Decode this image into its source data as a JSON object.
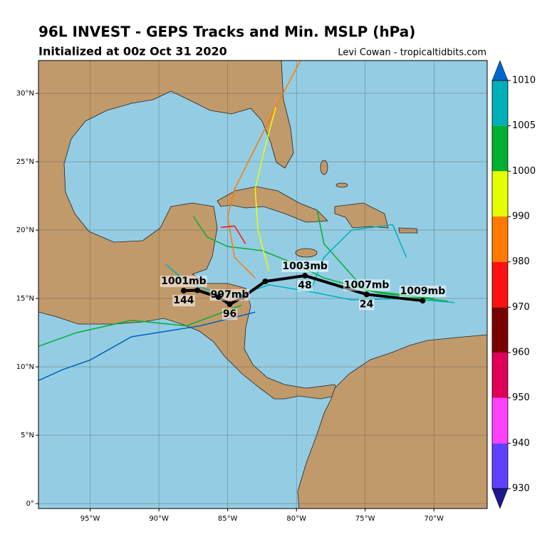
{
  "header": {
    "title": "96L INVEST - GEPS Tracks and Min. MSLP (hPa)",
    "subtitle": "Initialized at 00z Oct 31 2020",
    "credit": "Levi Cowan - tropicaltidbits.com"
  },
  "chart_data": {
    "type": "map-tracks",
    "xlim": [
      -98.76,
      -66.13
    ],
    "ylim": [
      -0.36,
      32.4
    ],
    "xticks": [
      {
        "value": -95,
        "label": "95°W"
      },
      {
        "value": -90,
        "label": "90°W"
      },
      {
        "value": -85,
        "label": "85°W"
      },
      {
        "value": -80,
        "label": "80°W"
      },
      {
        "value": -75,
        "label": "75°W"
      },
      {
        "value": -70,
        "label": "70°W"
      }
    ],
    "yticks": [
      {
        "value": 0,
        "label": "0°"
      },
      {
        "value": 5,
        "label": "5°N"
      },
      {
        "value": 10,
        "label": "10°N"
      },
      {
        "value": 15,
        "label": "15°N"
      },
      {
        "value": 20,
        "label": "20°N"
      },
      {
        "value": 25,
        "label": "25°N"
      },
      {
        "value": 30,
        "label": "30°N"
      }
    ],
    "grid": true,
    "members": [
      {
        "color": "#00b0b8",
        "lon": [
          -68.5,
          -72,
          -76,
          -79,
          -82,
          -84,
          -86,
          -88,
          -89.5
        ],
        "lat": [
          14.7,
          15,
          14.9,
          15.5,
          16,
          15.3,
          15.5,
          16.2,
          17.5
        ]
      },
      {
        "color": "#00b030",
        "lon": [
          -69,
          -74,
          -78,
          -80,
          -82.5,
          -85,
          -86.5,
          -87.5
        ],
        "lat": [
          14.8,
          15.4,
          16.5,
          17.5,
          18.5,
          18.8,
          19.5,
          21
        ]
      },
      {
        "color": "#ff7a00",
        "lon": [
          -83,
          -84.5,
          -85,
          -84.5,
          -83,
          -81.5,
          -79.7
        ],
        "lat": [
          16.5,
          18,
          21,
          23,
          26,
          29,
          32.4
        ]
      },
      {
        "color": "#e6ff00",
        "lon": [
          -82,
          -82.8,
          -83,
          -82.3,
          -81.5
        ],
        "lat": [
          17,
          20,
          23,
          26,
          29
        ]
      },
      {
        "color": "#00b030",
        "lon": [
          -70,
          -75,
          -78,
          -78.5
        ],
        "lat": [
          15,
          15.6,
          19,
          21.5
        ]
      },
      {
        "color": "#0060c0",
        "lon": [
          -83,
          -87,
          -92,
          -95,
          -97,
          -98.76
        ],
        "lat": [
          14,
          13,
          12.2,
          10.5,
          9.8,
          9
        ]
      },
      {
        "color": "#00b030",
        "lon": [
          -84,
          -88,
          -92,
          -96,
          -98.76
        ],
        "lat": [
          14.5,
          13,
          13.4,
          12.5,
          11.5
        ]
      },
      {
        "color": "#00b0b8",
        "lon": [
          -79,
          -78,
          -76,
          -73,
          -72
        ],
        "lat": [
          15.5,
          18,
          20,
          20.4,
          18
        ]
      },
      {
        "color": "#ff1010",
        "lon": [
          -83.7,
          -84.5,
          -85.5
        ],
        "lat": [
          19,
          20.3,
          20.2
        ]
      }
    ],
    "mean_track": {
      "color": "#000000",
      "points": [
        {
          "lon": -70.82,
          "lat": 14.84,
          "pressure": "1009mb"
        },
        {
          "lon": -74.9,
          "lat": 15.3,
          "hour": 24,
          "pressure": "1007mb"
        },
        {
          "lon": -79.38,
          "lat": 16.67,
          "hour": 48,
          "pressure": "1003mb"
        },
        {
          "lon": -82.27,
          "lat": 16.25
        },
        {
          "lon": -83.9,
          "lat": 15.1
        },
        {
          "lon": -84.85,
          "lat": 14.58,
          "hour": 96,
          "pressure": "997mb"
        },
        {
          "lon": -85.67,
          "lat": 15.1
        },
        {
          "lon": -87.2,
          "lat": 15.6
        },
        {
          "lon": -88.2,
          "lat": 15.57,
          "hour": 144,
          "pressure": "1001mb"
        }
      ]
    },
    "colorbar": {
      "levels": [
        930,
        940,
        950,
        960,
        970,
        980,
        990,
        1000,
        1005,
        1010
      ],
      "colors": [
        "#6040ff",
        "#ff40ff",
        "#e0005a",
        "#7a0000",
        "#ff1010",
        "#ff7a00",
        "#e6ff00",
        "#00b030",
        "#00b0b8"
      ],
      "under_color": "#1a1a8c",
      "over_color": "#0066cc"
    }
  }
}
